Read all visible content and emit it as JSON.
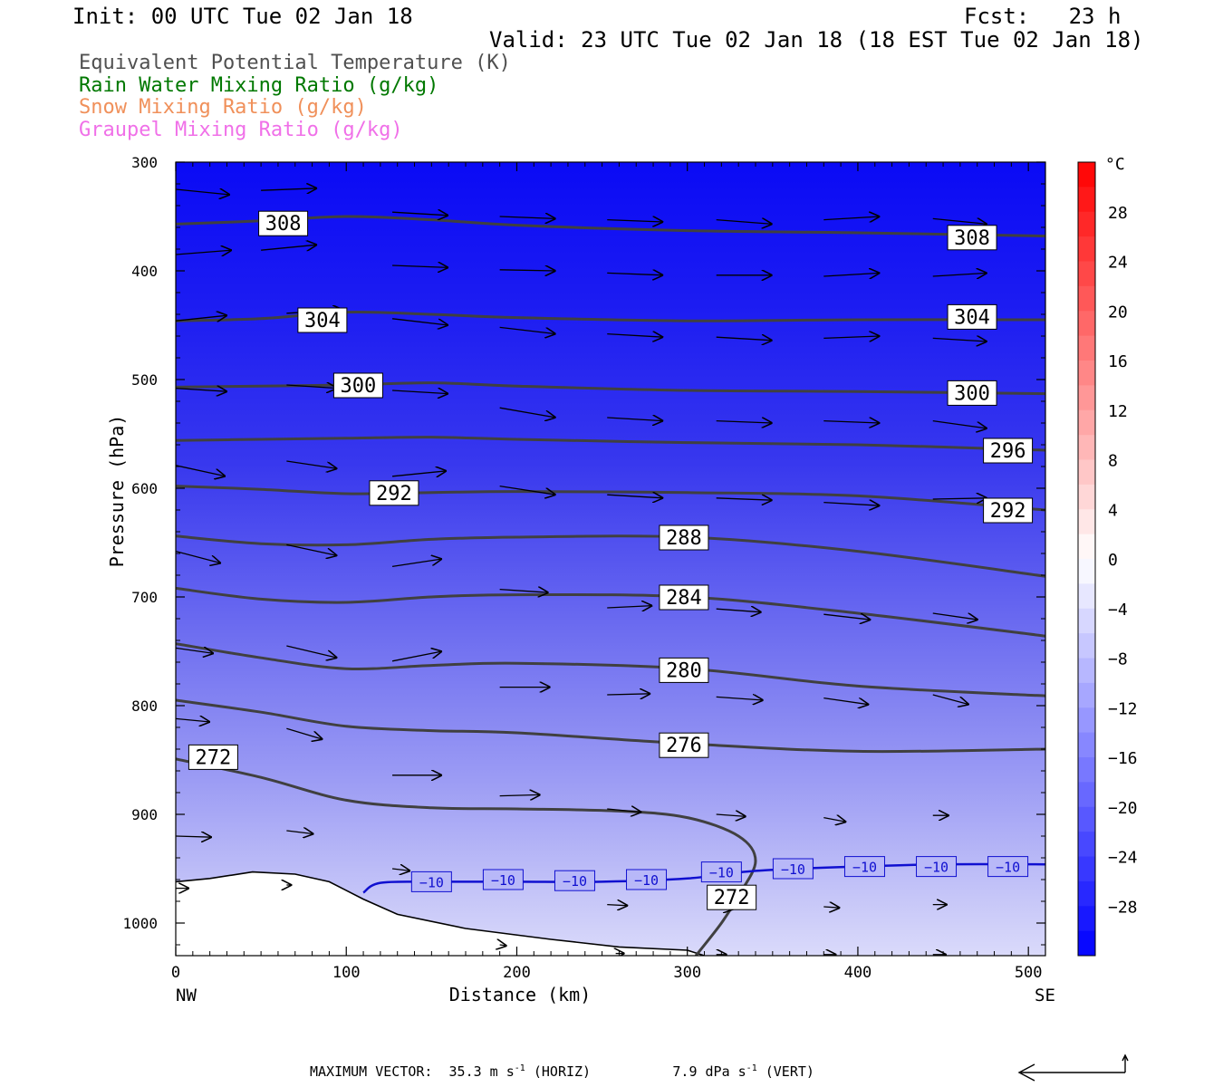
{
  "header": {
    "init": "Init: 00 UTC Tue 02 Jan 18",
    "fcst": "Fcst:   23 h",
    "valid": "Valid: 23 UTC Tue 02 Jan 18 (18 EST Tue 02 Jan 18)"
  },
  "legend": [
    {
      "label": "Equivalent Potential Temperature (K)",
      "color": "#505050"
    },
    {
      "label": "Rain Water Mixing Ratio (g/kg)",
      "color": "#007800"
    },
    {
      "label": "Snow Mixing Ratio (g/kg)",
      "color": "#f0905a"
    },
    {
      "label": "Graupel Mixing Ratio (g/kg)",
      "color": "#f070e8"
    }
  ],
  "footer": {
    "max_vector_label": "MAXIMUM VECTOR:",
    "horiz_value": "35.3 m s",
    "horiz_exp": "-1",
    "horiz_unit": "(HORIZ)",
    "vert_value": "7.9 dPa s",
    "vert_exp": "-1",
    "vert_unit": "(VERT)"
  },
  "chart_data": {
    "type": "cross-section",
    "xlabel": "Distance (km)",
    "ylabel": "Pressure (hPa)",
    "x_range": [
      0,
      510
    ],
    "y_range": [
      300,
      1030
    ],
    "y_scale": "linear, inverted",
    "x_ticks": [
      0,
      100,
      200,
      300,
      400,
      500
    ],
    "y_ticks": [
      300,
      400,
      500,
      600,
      700,
      800,
      900,
      1000
    ],
    "x_end_labels": {
      "left": "NW",
      "right": "SE"
    },
    "colorbar": {
      "unit": "°C",
      "levels": [
        -32,
        -30,
        -28,
        -26,
        -24,
        -22,
        -20,
        -18,
        -16,
        -14,
        -12,
        -10,
        -8,
        -6,
        -4,
        -2,
        0,
        2,
        4,
        6,
        8,
        10,
        12,
        14,
        16,
        18,
        20,
        22,
        24,
        26,
        28,
        30,
        32
      ],
      "tick_labels": [
        "28",
        "24",
        "20",
        "16",
        "12",
        "8",
        "4",
        "0",
        "−4",
        "−8",
        "−12",
        "−16",
        "−20",
        "−24",
        "−28"
      ],
      "cold_color": "#0000ff",
      "neutral_color": "#ffffff",
      "warm_color": "#ff0000"
    },
    "theta_e_contours": [
      {
        "value": 308,
        "label": "308",
        "points": [
          [
            0,
            357
          ],
          [
            50,
            354
          ],
          [
            100,
            350
          ],
          [
            150,
            353
          ],
          [
            200,
            358
          ],
          [
            300,
            363
          ],
          [
            400,
            365
          ],
          [
            510,
            368
          ]
        ],
        "label_at": [
          [
            63,
            356
          ],
          [
            467,
            369
          ]
        ]
      },
      {
        "value": 304,
        "label": "304",
        "points": [
          [
            0,
            446
          ],
          [
            50,
            444
          ],
          [
            100,
            438
          ],
          [
            150,
            440
          ],
          [
            200,
            443
          ],
          [
            300,
            446
          ],
          [
            400,
            445
          ],
          [
            510,
            445
          ]
        ],
        "label_at": [
          [
            86,
            445
          ],
          [
            467,
            442
          ]
        ]
      },
      {
        "value": 300,
        "label": "300",
        "points": [
          [
            0,
            507
          ],
          [
            50,
            506
          ],
          [
            100,
            505
          ],
          [
            150,
            503
          ],
          [
            200,
            506
          ],
          [
            300,
            510
          ],
          [
            400,
            511
          ],
          [
            510,
            513
          ]
        ],
        "label_at": [
          [
            107,
            505
          ],
          [
            467,
            512
          ]
        ]
      },
      {
        "value": 296,
        "label": "296",
        "points": [
          [
            0,
            556
          ],
          [
            50,
            555
          ],
          [
            100,
            554
          ],
          [
            150,
            553
          ],
          [
            200,
            555
          ],
          [
            300,
            558
          ],
          [
            400,
            560
          ],
          [
            510,
            565
          ]
        ],
        "label_at": [
          [
            488,
            565
          ]
        ]
      },
      {
        "value": 292,
        "label": "292",
        "points": [
          [
            0,
            598
          ],
          [
            50,
            601
          ],
          [
            100,
            605
          ],
          [
            150,
            604
          ],
          [
            200,
            603
          ],
          [
            300,
            604
          ],
          [
            400,
            607
          ],
          [
            510,
            620
          ]
        ],
        "label_at": [
          [
            128,
            604
          ],
          [
            488,
            620
          ]
        ]
      },
      {
        "value": 288,
        "label": "288",
        "points": [
          [
            0,
            644
          ],
          [
            50,
            651
          ],
          [
            100,
            652
          ],
          [
            150,
            647
          ],
          [
            200,
            645
          ],
          [
            300,
            645
          ],
          [
            400,
            658
          ],
          [
            510,
            681
          ]
        ],
        "label_at": [
          [
            298,
            645
          ]
        ]
      },
      {
        "value": 284,
        "label": "284",
        "points": [
          [
            0,
            692
          ],
          [
            50,
            702
          ],
          [
            100,
            705
          ],
          [
            150,
            700
          ],
          [
            200,
            698
          ],
          [
            300,
            700
          ],
          [
            400,
            715
          ],
          [
            510,
            736
          ]
        ],
        "label_at": [
          [
            298,
            700
          ]
        ]
      },
      {
        "value": 280,
        "label": "280",
        "points": [
          [
            0,
            743
          ],
          [
            50,
            756
          ],
          [
            100,
            766
          ],
          [
            150,
            763
          ],
          [
            200,
            761
          ],
          [
            300,
            766
          ],
          [
            400,
            782
          ],
          [
            510,
            791
          ]
        ],
        "label_at": [
          [
            298,
            767
          ]
        ]
      },
      {
        "value": 276,
        "label": "276",
        "points": [
          [
            0,
            795
          ],
          [
            50,
            806
          ],
          [
            100,
            819
          ],
          [
            150,
            823
          ],
          [
            200,
            825
          ],
          [
            300,
            835
          ],
          [
            400,
            842
          ],
          [
            510,
            840
          ]
        ],
        "label_at": [
          [
            298,
            836
          ]
        ]
      },
      {
        "value": 272,
        "label": "272",
        "points": [
          [
            0,
            849
          ],
          [
            50,
            866
          ],
          [
            100,
            887
          ],
          [
            150,
            894
          ],
          [
            200,
            895
          ],
          [
            260,
            897
          ],
          [
            300,
            903
          ],
          [
            330,
            920
          ],
          [
            340,
            943
          ],
          [
            330,
            975
          ],
          [
            320,
            1000
          ],
          [
            305,
            1030
          ]
        ],
        "label_at": [
          [
            22,
            847
          ],
          [
            326,
            976
          ]
        ]
      }
    ],
    "isotherm_minus10": {
      "value": -10,
      "label": "−10",
      "points": [
        [
          110,
          972
        ],
        [
          120,
          963
        ],
        [
          150,
          962
        ],
        [
          200,
          962
        ],
        [
          250,
          962
        ],
        [
          300,
          959
        ],
        [
          340,
          952
        ],
        [
          400,
          948
        ],
        [
          450,
          946
        ],
        [
          510,
          946
        ]
      ],
      "label_at": [
        [
          150,
          962
        ],
        [
          192,
          960
        ],
        [
          234,
          961
        ],
        [
          276,
          960
        ],
        [
          320,
          953
        ],
        [
          362,
          950
        ],
        [
          404,
          948
        ],
        [
          446,
          948
        ],
        [
          488,
          948
        ]
      ]
    },
    "terrain": {
      "fill": "#ffffff",
      "points": [
        [
          0,
          962
        ],
        [
          20,
          959
        ],
        [
          45,
          953
        ],
        [
          70,
          955
        ],
        [
          90,
          962
        ],
        [
          110,
          978
        ],
        [
          130,
          992
        ],
        [
          170,
          1005
        ],
        [
          220,
          1015
        ],
        [
          260,
          1022
        ],
        [
          300,
          1025
        ],
        [
          310,
          1030
        ]
      ]
    },
    "wind_vectors": [
      [
        0,
        325,
        60,
        330
      ],
      [
        50,
        326,
        62,
        324
      ],
      [
        0,
        385,
        62,
        381
      ],
      [
        50,
        381,
        62,
        376
      ],
      [
        127,
        346,
        62,
        349
      ],
      [
        190,
        350,
        62,
        352
      ],
      [
        253,
        353,
        62,
        355
      ],
      [
        317,
        353,
        62,
        357
      ],
      [
        380,
        353,
        62,
        350
      ],
      [
        444,
        352,
        60,
        357
      ],
      [
        127,
        395,
        62,
        397
      ],
      [
        190,
        399,
        62,
        400
      ],
      [
        253,
        402,
        62,
        404
      ],
      [
        317,
        404,
        62,
        404
      ],
      [
        380,
        405,
        62,
        402
      ],
      [
        444,
        405,
        60,
        402
      ],
      [
        0,
        446,
        57,
        441
      ],
      [
        65,
        439,
        63,
        436
      ],
      [
        127,
        444,
        62,
        450
      ],
      [
        190,
        452,
        62,
        458
      ],
      [
        253,
        458,
        62,
        461
      ],
      [
        317,
        461,
        62,
        464
      ],
      [
        380,
        462,
        62,
        460
      ],
      [
        444,
        462,
        60,
        465
      ],
      [
        0,
        508,
        57,
        511
      ],
      [
        65,
        505,
        56,
        508
      ],
      [
        127,
        510,
        62,
        513
      ],
      [
        190,
        526,
        62,
        535
      ],
      [
        253,
        535,
        62,
        538
      ],
      [
        317,
        538,
        62,
        540
      ],
      [
        380,
        538,
        62,
        540
      ],
      [
        444,
        538,
        60,
        545
      ],
      [
        0,
        579,
        55,
        589
      ],
      [
        65,
        575,
        56,
        582
      ],
      [
        127,
        589,
        60,
        584
      ],
      [
        190,
        598,
        62,
        606
      ],
      [
        253,
        606,
        62,
        609
      ],
      [
        317,
        609,
        62,
        611
      ],
      [
        380,
        613,
        62,
        616
      ],
      [
        444,
        610,
        60,
        609
      ],
      [
        0,
        658,
        50,
        669
      ],
      [
        65,
        652,
        56,
        662
      ],
      [
        127,
        672,
        55,
        665
      ],
      [
        190,
        693,
        54,
        696
      ],
      [
        253,
        710,
        50,
        708
      ],
      [
        317,
        711,
        50,
        714
      ],
      [
        380,
        716,
        52,
        721
      ],
      [
        444,
        715,
        50,
        721
      ],
      [
        0,
        747,
        42,
        752
      ],
      [
        65,
        745,
        56,
        756
      ],
      [
        127,
        759,
        55,
        750
      ],
      [
        190,
        783,
        56,
        783
      ],
      [
        253,
        790,
        48,
        789
      ],
      [
        317,
        792,
        52,
        795
      ],
      [
        380,
        793,
        50,
        799
      ],
      [
        444,
        790,
        40,
        799
      ],
      [
        0,
        812,
        38,
        815
      ],
      [
        65,
        821,
        40,
        831
      ],
      [
        127,
        864,
        55,
        864
      ],
      [
        190,
        883,
        45,
        882
      ],
      [
        253,
        895,
        38,
        898
      ],
      [
        317,
        900,
        33,
        902
      ],
      [
        380,
        903,
        25,
        907
      ],
      [
        444,
        901,
        18,
        901
      ],
      [
        0,
        920,
        40,
        921
      ],
      [
        65,
        915,
        30,
        918
      ],
      [
        127,
        950,
        20,
        952
      ],
      [
        190,
        962,
        25,
        962
      ],
      [
        253,
        983,
        23,
        984
      ],
      [
        317,
        985,
        20,
        987
      ],
      [
        380,
        985,
        18,
        986
      ],
      [
        444,
        983,
        16,
        983
      ],
      [
        190,
        1020,
        8,
        1021
      ],
      [
        258,
        1028,
        10,
        1028
      ],
      [
        317,
        1029,
        12,
        1029
      ],
      [
        380,
        1029,
        14,
        1029
      ],
      [
        444,
        1029,
        15,
        1029
      ],
      [
        0,
        968,
        15,
        968
      ],
      [
        65,
        965,
        6,
        965
      ]
    ]
  }
}
